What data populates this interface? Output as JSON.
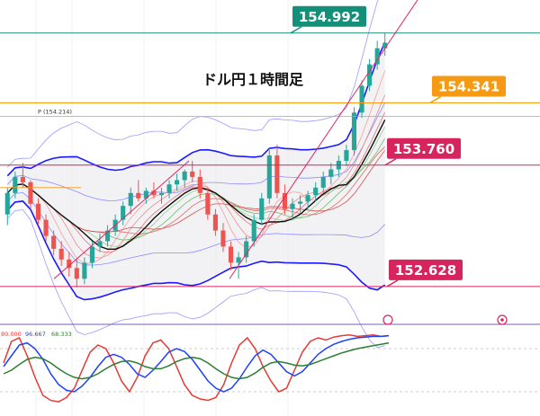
{
  "title": "ドル円１時間足",
  "chart_data": {
    "type": "candlestick",
    "title": "ドル円１時間足",
    "ylim": [
      152.3,
      155.3
    ],
    "levels": [
      {
        "name": "154.992",
        "value": 154.992,
        "color": "#14907a"
      },
      {
        "name": "154.341",
        "value": 154.341,
        "color": "#f59a12"
      },
      {
        "name": "153.760",
        "value": 153.76,
        "color": "#d6245f"
      },
      {
        "name": "152.628",
        "value": 152.628,
        "color": "#d6245f"
      }
    ],
    "pivot": {
      "label": "P (154.214)",
      "value": 154.214,
      "color": "#f59a12"
    },
    "candles": [
      [
        153.3,
        153.55,
        153.2,
        153.5
      ],
      [
        153.5,
        153.7,
        153.45,
        153.65
      ],
      [
        153.65,
        153.78,
        153.55,
        153.6
      ],
      [
        153.6,
        153.62,
        153.35,
        153.4
      ],
      [
        153.4,
        153.45,
        153.2,
        153.25
      ],
      [
        153.25,
        153.3,
        153.05,
        153.1
      ],
      [
        153.1,
        153.15,
        152.92,
        152.98
      ],
      [
        152.98,
        153.05,
        152.82,
        152.88
      ],
      [
        152.88,
        152.95,
        152.72,
        152.8
      ],
      [
        152.8,
        152.88,
        152.62,
        152.7
      ],
      [
        152.7,
        152.9,
        152.65,
        152.85
      ],
      [
        152.85,
        153.05,
        152.8,
        153.0
      ],
      [
        153.0,
        153.12,
        152.95,
        153.05
      ],
      [
        153.05,
        153.2,
        153.0,
        153.15
      ],
      [
        153.15,
        153.3,
        153.1,
        153.25
      ],
      [
        153.25,
        153.42,
        153.2,
        153.38
      ],
      [
        153.38,
        153.55,
        153.3,
        153.5
      ],
      [
        153.5,
        153.62,
        153.42,
        153.45
      ],
      [
        153.45,
        153.55,
        153.4,
        153.52
      ],
      [
        153.52,
        153.6,
        153.45,
        153.48
      ],
      [
        153.48,
        153.55,
        153.4,
        153.5
      ],
      [
        153.5,
        153.62,
        153.45,
        153.58
      ],
      [
        153.58,
        153.68,
        153.52,
        153.62
      ],
      [
        153.62,
        153.72,
        153.55,
        153.7
      ],
      [
        153.7,
        153.8,
        153.6,
        153.65
      ],
      [
        153.65,
        153.72,
        153.45,
        153.5
      ],
      [
        153.5,
        153.55,
        153.25,
        153.3
      ],
      [
        153.3,
        153.35,
        153.1,
        153.15
      ],
      [
        153.15,
        153.22,
        152.95,
        153.0
      ],
      [
        153.0,
        153.05,
        152.78,
        152.85
      ],
      [
        152.85,
        152.95,
        152.7,
        152.9
      ],
      [
        152.9,
        153.1,
        152.85,
        153.05
      ],
      [
        153.05,
        153.3,
        153.0,
        153.25
      ],
      [
        153.25,
        153.5,
        153.2,
        153.45
      ],
      [
        153.45,
        153.9,
        153.4,
        153.85
      ],
      [
        153.85,
        153.95,
        153.45,
        153.5
      ],
      [
        153.5,
        153.58,
        153.3,
        153.35
      ],
      [
        153.35,
        153.45,
        153.25,
        153.4
      ],
      [
        153.4,
        153.48,
        153.32,
        153.42
      ],
      [
        153.42,
        153.52,
        153.35,
        153.48
      ],
      [
        153.48,
        153.6,
        153.42,
        153.55
      ],
      [
        153.55,
        153.7,
        153.5,
        153.65
      ],
      [
        153.65,
        153.78,
        153.58,
        153.72
      ],
      [
        153.72,
        153.85,
        153.65,
        153.8
      ],
      [
        153.8,
        153.95,
        153.75,
        153.9
      ],
      [
        153.9,
        154.3,
        153.85,
        154.25
      ],
      [
        154.25,
        154.55,
        154.2,
        154.5
      ],
      [
        154.5,
        154.75,
        154.45,
        154.7
      ],
      [
        154.7,
        154.92,
        154.65,
        154.85
      ],
      [
        154.85,
        154.99,
        154.78,
        154.9
      ]
    ],
    "indicator": {
      "labels": [
        "80.000",
        "96.667",
        "68.333"
      ],
      "label_colors": [
        "#e53935",
        "#1e40ff",
        "#2e7d32"
      ],
      "series": [
        {
          "color": "#e53935",
          "values": [
            60,
            90,
            95,
            70,
            40,
            15,
            8,
            6,
            12,
            25,
            50,
            75,
            85,
            80,
            60,
            35,
            20,
            40,
            70,
            88,
            92,
            80,
            55,
            30,
            15,
            10,
            8,
            12,
            30,
            60,
            85,
            95,
            80,
            55,
            35,
            20,
            25,
            50,
            75,
            90,
            95,
            92,
            96,
            98,
            99,
            97,
            98,
            99,
            97,
            98
          ]
        },
        {
          "color": "#1e40ff",
          "values": [
            55,
            70,
            85,
            88,
            80,
            65,
            45,
            30,
            22,
            20,
            28,
            40,
            55,
            68,
            72,
            68,
            58,
            45,
            40,
            50,
            62,
            75,
            80,
            76,
            65,
            50,
            35,
            25,
            20,
            25,
            38,
            55,
            70,
            78,
            72,
            60,
            48,
            42,
            48,
            60,
            72,
            80,
            86,
            90,
            93,
            95,
            96,
            97,
            97,
            98
          ]
        },
        {
          "color": "#2e7d32",
          "values": [
            45,
            50,
            58,
            65,
            68,
            66,
            60,
            52,
            45,
            40,
            38,
            40,
            45,
            52,
            58,
            62,
            63,
            60,
            55,
            52,
            52,
            56,
            62,
            66,
            68,
            66,
            60,
            52,
            45,
            40,
            38,
            40,
            46,
            54,
            60,
            62,
            60,
            57,
            56,
            58,
            62,
            66,
            70,
            74,
            77,
            80,
            82,
            84,
            86,
            88
          ]
        }
      ]
    }
  }
}
